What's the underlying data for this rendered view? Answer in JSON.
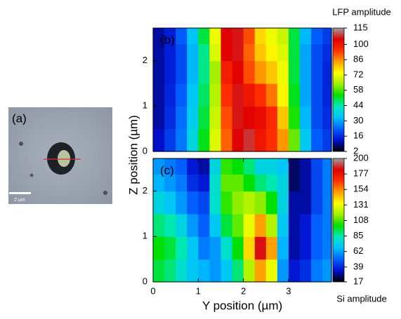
{
  "panel_a": {
    "label": "(a)",
    "scale_bar": "2 µm"
  },
  "chart_data": [
    {
      "type": "heatmap",
      "label": "(b)",
      "ylabel": "Z position (µm)",
      "x": [
        0.125,
        0.375,
        0.625,
        0.875,
        1.125,
        1.375,
        1.625,
        1.875,
        2.125,
        2.375,
        2.625,
        2.875,
        3.125,
        3.375,
        3.625,
        3.875
      ],
      "y": [
        0.25,
        0.75,
        1.25,
        1.75,
        2.25,
        2.5
      ],
      "z": [
        [
          12,
          18,
          25,
          38,
          52,
          70,
          90,
          105,
          108,
          100,
          95,
          85,
          60,
          35,
          22,
          18
        ],
        [
          10,
          16,
          24,
          36,
          50,
          68,
          92,
          106,
          104,
          102,
          96,
          80,
          55,
          32,
          20,
          16
        ],
        [
          10,
          15,
          22,
          34,
          48,
          66,
          95,
          106,
          100,
          95,
          88,
          75,
          52,
          30,
          20,
          15
        ],
        [
          10,
          14,
          20,
          32,
          46,
          64,
          98,
          104,
          92,
          85,
          80,
          72,
          50,
          30,
          20,
          15
        ],
        [
          10,
          14,
          20,
          32,
          46,
          70,
          104,
          106,
          90,
          80,
          75,
          70,
          50,
          30,
          20,
          16
        ],
        [
          10,
          14,
          22,
          34,
          50,
          72,
          105,
          106,
          92,
          78,
          72,
          68,
          50,
          32,
          22,
          18
        ]
      ],
      "xlim": [
        0,
        3.95
      ],
      "ylim": [
        0,
        2.72
      ],
      "yticks": [
        0,
        1,
        2
      ],
      "colorbar": {
        "title": "LFP amplitude",
        "lim": [
          2,
          115
        ],
        "ticks": [
          2,
          16,
          30,
          44,
          58,
          72,
          86,
          100,
          115
        ]
      },
      "colors": [
        "#000000",
        "#0010d0",
        "#0060ff",
        "#00c0ff",
        "#00e8c0",
        "#00e000",
        "#a0f000",
        "#ffff00",
        "#ffa000",
        "#ff3000",
        "#e00000",
        "#a0a0a0"
      ]
    },
    {
      "type": "heatmap",
      "label": "(c)",
      "xlabel": "Y position (µm)",
      "x": [
        0.125,
        0.375,
        0.625,
        0.875,
        1.125,
        1.375,
        1.625,
        1.875,
        2.125,
        2.375,
        2.625,
        2.875,
        3.125,
        3.375,
        3.625,
        3.875
      ],
      "y": [
        0.25,
        0.75,
        1.25,
        1.75,
        2.25,
        2.5
      ],
      "z": [
        [
          95,
          90,
          80,
          70,
          65,
          60,
          70,
          90,
          120,
          150,
          130,
          60,
          35,
          40,
          55,
          60
        ],
        [
          100,
          95,
          85,
          70,
          55,
          60,
          80,
          100,
          140,
          185,
          150,
          65,
          30,
          35,
          50,
          55
        ],
        [
          90,
          85,
          75,
          60,
          50,
          70,
          95,
          110,
          130,
          150,
          120,
          70,
          30,
          35,
          50,
          55
        ],
        [
          75,
          70,
          60,
          50,
          45,
          80,
          105,
          115,
          120,
          115,
          100,
          75,
          30,
          30,
          45,
          55
        ],
        [
          65,
          60,
          55,
          40,
          35,
          80,
          110,
          110,
          100,
          90,
          85,
          75,
          25,
          30,
          45,
          55
        ],
        [
          60,
          55,
          50,
          35,
          30,
          75,
          105,
          100,
          90,
          75,
          75,
          70,
          25,
          30,
          45,
          55
        ]
      ],
      "xlim": [
        0,
        3.95
      ],
      "ylim": [
        0,
        2.72
      ],
      "xticks": [
        0,
        1,
        2,
        3
      ],
      "yticks": [
        0,
        1,
        2
      ],
      "colorbar": {
        "title": "Si amplitude",
        "lim": [
          17,
          200
        ],
        "ticks": [
          17,
          39,
          62,
          85,
          108,
          131,
          154,
          177,
          200
        ]
      },
      "colors": [
        "#000000",
        "#0010d0",
        "#0060ff",
        "#00c0ff",
        "#00e8c0",
        "#00e000",
        "#a0f000",
        "#ffff00",
        "#ffa000",
        "#ff3000",
        "#e00000",
        "#a0a0a0"
      ]
    }
  ]
}
